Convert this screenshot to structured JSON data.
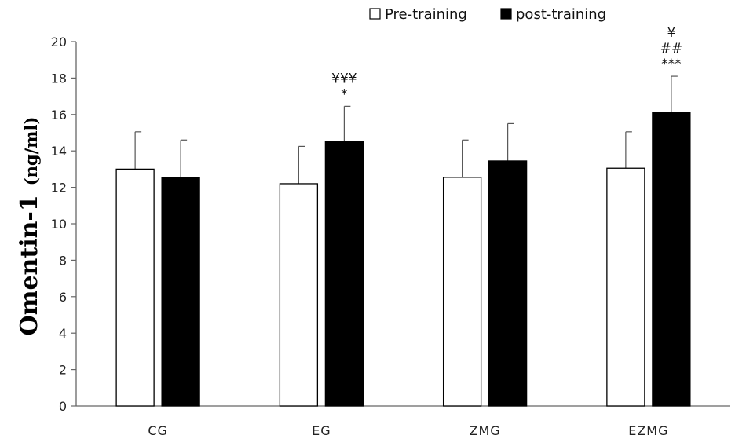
{
  "chart_data": {
    "type": "bar",
    "ylabel_main": "Omentin-1",
    "ylabel_unit": "(ng/ml)",
    "xlabel": "",
    "ylim": [
      0,
      20
    ],
    "yticks": [
      0,
      2,
      4,
      6,
      8,
      10,
      12,
      14,
      16,
      18,
      20
    ],
    "categories": [
      "CG",
      "EG",
      "ZMG",
      "EZMG"
    ],
    "series": [
      {
        "name": "Pre-training",
        "values": [
          13.0,
          12.2,
          12.55,
          13.05
        ],
        "errors": [
          2.05,
          2.05,
          2.05,
          2.0
        ],
        "fill": "#ffffff"
      },
      {
        "name": "post-training",
        "values": [
          12.55,
          14.5,
          13.45,
          16.1
        ],
        "errors": [
          2.05,
          1.95,
          2.05,
          2.0
        ],
        "fill": "#000000"
      }
    ],
    "annotations": [
      {
        "category": "EG",
        "series": "post-training",
        "lines": [
          "¥¥¥",
          "*"
        ]
      },
      {
        "category": "EZMG",
        "series": "post-training",
        "lines": [
          "¥",
          "##",
          "***"
        ]
      }
    ],
    "legend_position": "top-right",
    "grid": false
  }
}
